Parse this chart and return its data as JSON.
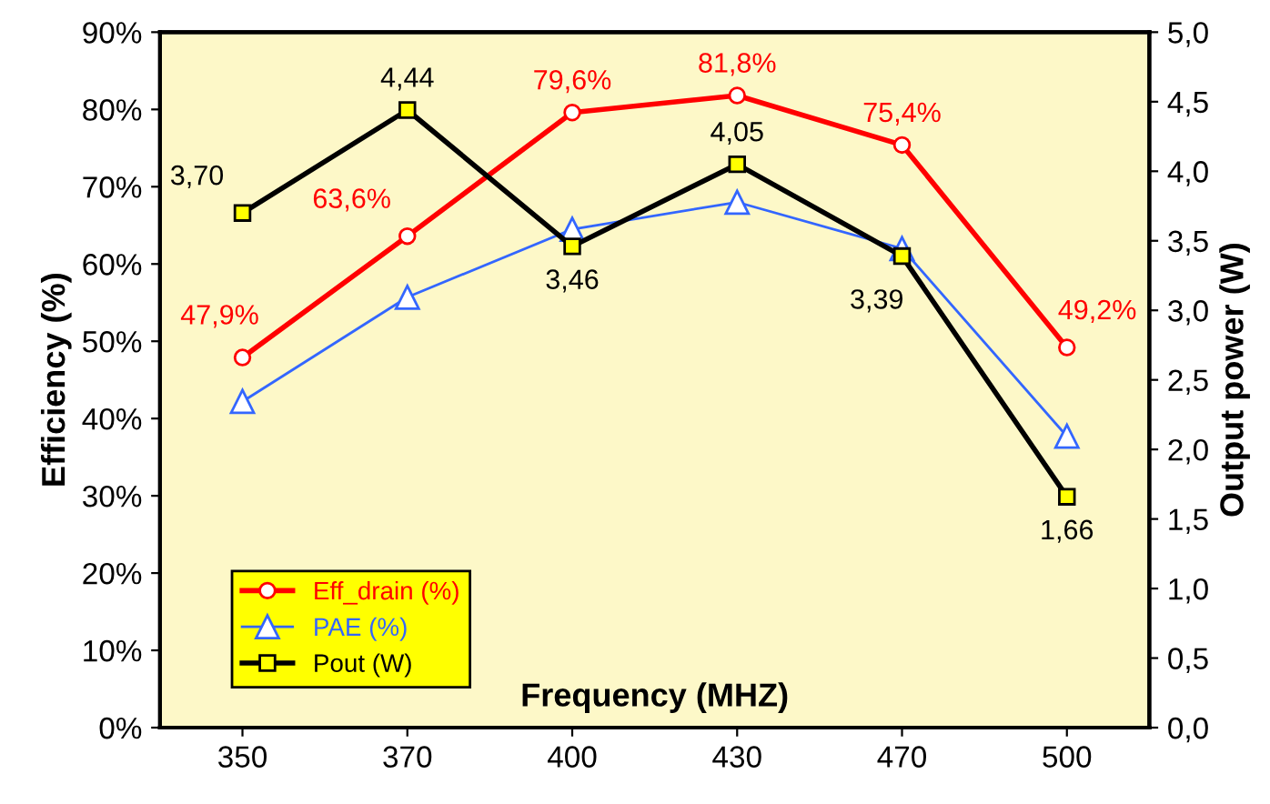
{
  "chart_data": {
    "type": "line",
    "xlabel": "Frequency (MHZ)",
    "ylabel": "Efficiency (%)",
    "y2label": "Output power (W)",
    "categories": [
      "350",
      "370",
      "400",
      "430",
      "470",
      "500"
    ],
    "series": [
      {
        "name": "Eff_drain (%)",
        "color": "#ff0000",
        "marker": "circle",
        "values": [
          47.9,
          63.6,
          79.6,
          81.8,
          75.4,
          49.2
        ],
        "value_labels": [
          "47,9%",
          "63,6%",
          "79,6%",
          "81,8%",
          "75,4%",
          "49,2%"
        ]
      },
      {
        "name": "PAE (%)",
        "color": "#3366ff",
        "marker": "triangle",
        "values": [
          42.2,
          55.7,
          64.5,
          68.0,
          62.0,
          37.7
        ]
      },
      {
        "name": "Pout (W)",
        "color": "#000000",
        "marker": "square",
        "axis": "y2",
        "values": [
          3.7,
          4.44,
          3.46,
          4.05,
          3.39,
          1.66
        ],
        "value_labels": [
          "3,70",
          "4,44",
          "3,46",
          "4,05",
          "3,39",
          "1,66"
        ]
      }
    ],
    "ylim": [
      0,
      90
    ],
    "yticks": [
      {
        "value": 0,
        "label": "0%"
      },
      {
        "value": 10,
        "label": "10%"
      },
      {
        "value": 20,
        "label": "20%"
      },
      {
        "value": 30,
        "label": "30%"
      },
      {
        "value": 40,
        "label": "40%"
      },
      {
        "value": 50,
        "label": "50%"
      },
      {
        "value": 60,
        "label": "60%"
      },
      {
        "value": 70,
        "label": "70%"
      },
      {
        "value": 80,
        "label": "80%"
      },
      {
        "value": 90,
        "label": "90%"
      }
    ],
    "y2lim": [
      0,
      5
    ],
    "y2ticks": [
      {
        "value": 0,
        "label": "0,0"
      },
      {
        "value": 0.5,
        "label": "0,5"
      },
      {
        "value": 1,
        "label": "1,0"
      },
      {
        "value": 1.5,
        "label": "1,5"
      },
      {
        "value": 2,
        "label": "2,0"
      },
      {
        "value": 2.5,
        "label": "2,5"
      },
      {
        "value": 3,
        "label": "3,0"
      },
      {
        "value": 3.5,
        "label": "3,5"
      },
      {
        "value": 4,
        "label": "4,0"
      },
      {
        "value": 4.5,
        "label": "4,5"
      },
      {
        "value": 5,
        "label": "5,0"
      }
    ],
    "grid": false,
    "legend": "bottom left"
  }
}
